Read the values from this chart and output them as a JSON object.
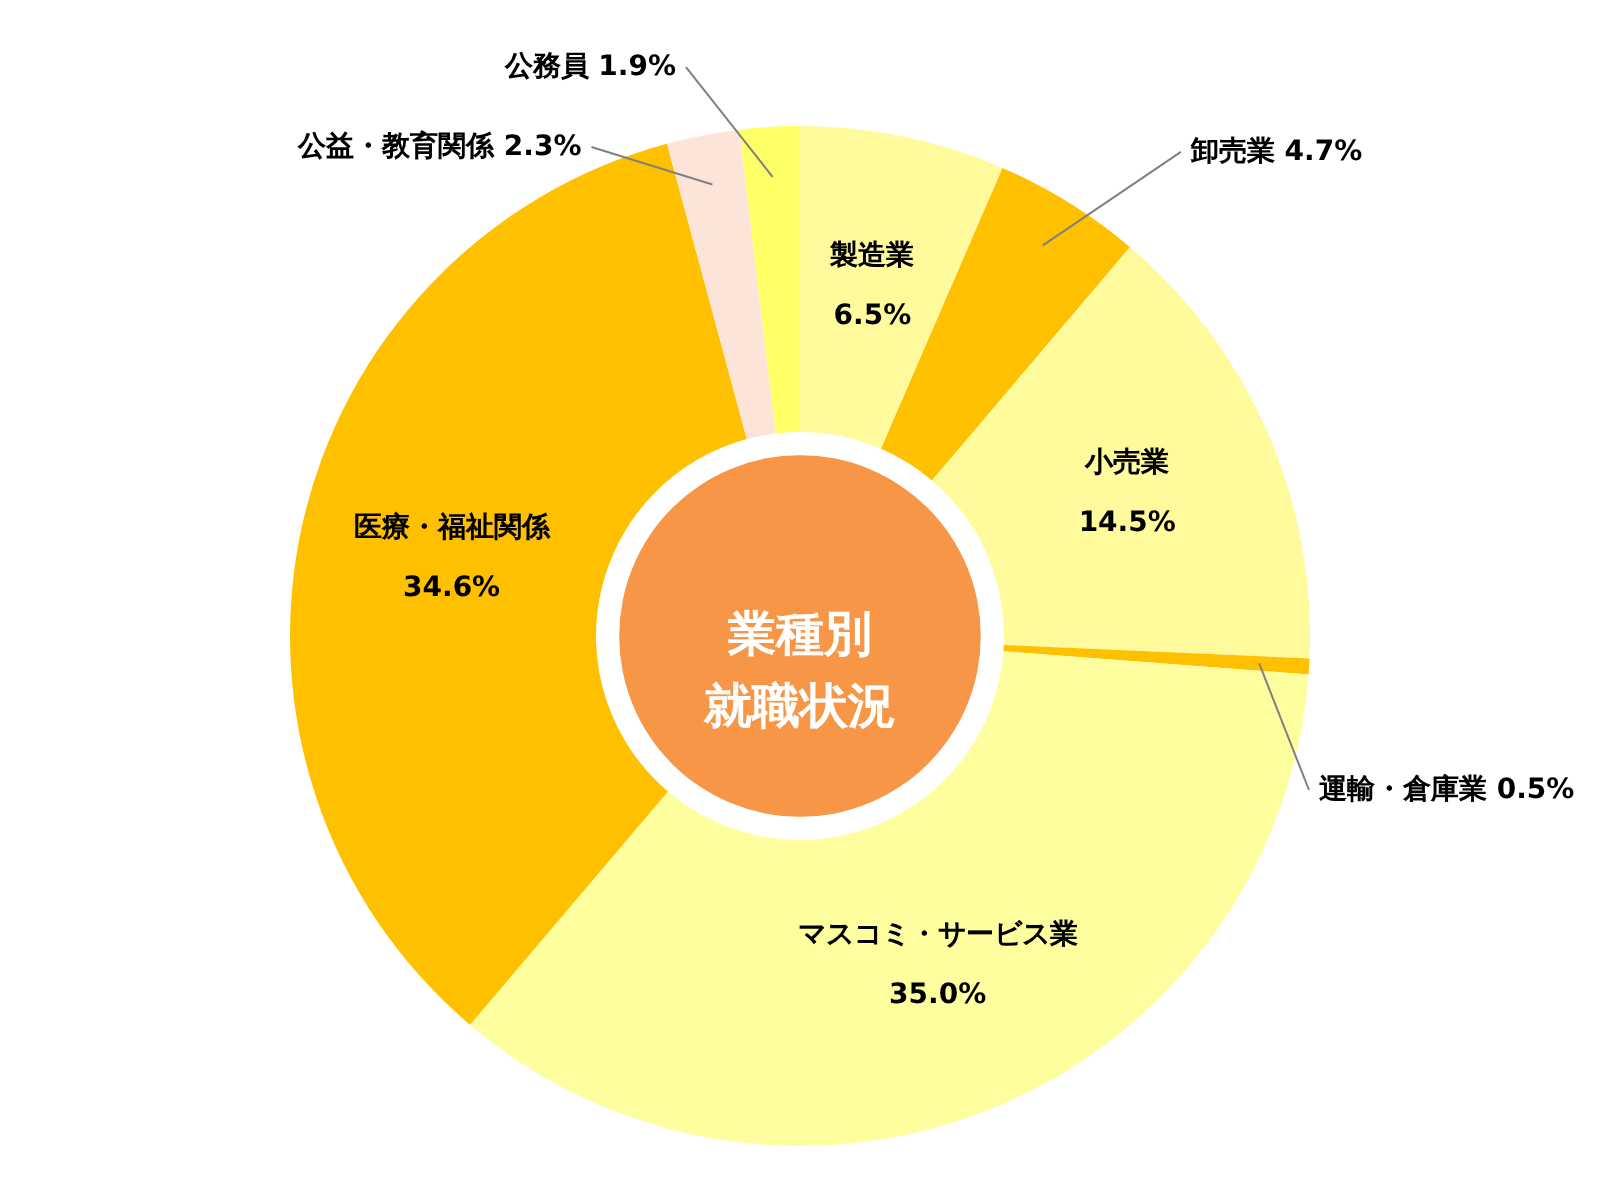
{
  "chart_data": {
    "type": "donut",
    "title": "業種別就職状況",
    "categories": [
      "製造業",
      "卸売業",
      "小売業",
      "運輸・倉庫業",
      "マスコミ・サービス業",
      "医療・福祉関係",
      "公益・教育関係",
      "公務員"
    ],
    "values": [
      6.5,
      4.7,
      14.5,
      0.5,
      35.0,
      34.6,
      2.3,
      1.9
    ],
    "value_labels": [
      "6.5%",
      "4.7%",
      "14.5%",
      "0.5%",
      "35.0%",
      "34.6%",
      "2.3%",
      "1.9%"
    ],
    "colors": [
      "#fffa9c",
      "#ffc000",
      "#fffa9c",
      "#ffc000",
      "#fffe9e",
      "#ffc000",
      "#fde4d8",
      "#ffff66"
    ]
  }
}
